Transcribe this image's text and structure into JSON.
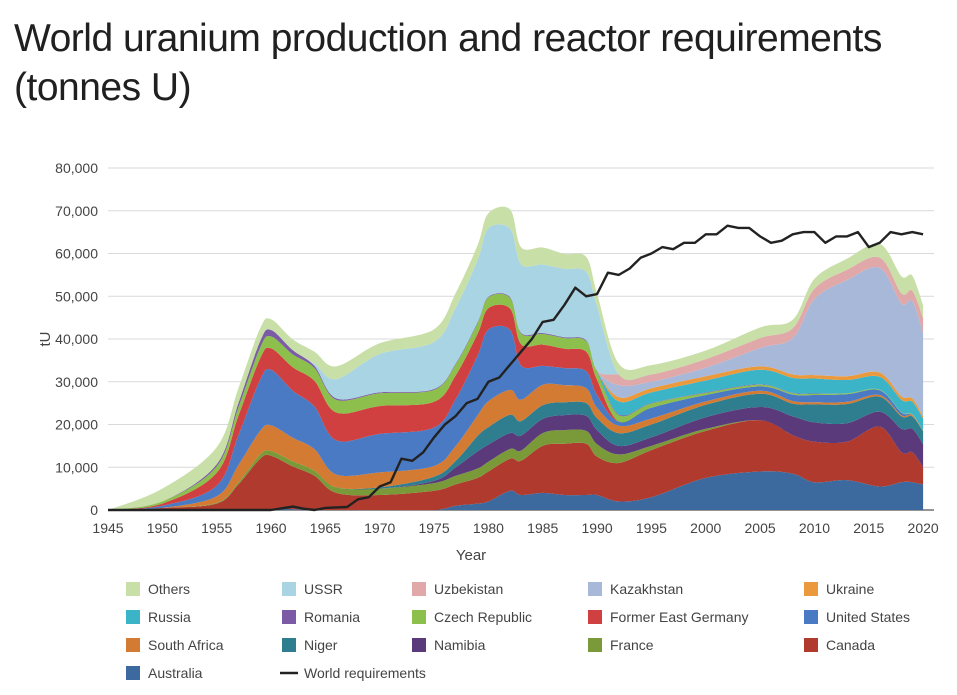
{
  "chart_data": {
    "type": "area",
    "title": "World uranium production and reactor requirements (tonnes U)",
    "xlabel": "Year",
    "ylabel": "tU",
    "xlim": [
      1945,
      2021
    ],
    "ylim": [
      0,
      80000
    ],
    "x_ticks": [
      "1945",
      "1950",
      "1955",
      "1960",
      "1965",
      "1970",
      "1975",
      "1980",
      "1985",
      "1990",
      "1995",
      "2000",
      "2005",
      "2010",
      "2015",
      "2020"
    ],
    "y_ticks": [
      "0",
      "10,000",
      "20,000",
      "30,000",
      "40,000",
      "50,000",
      "60,000",
      "70,000",
      "80,000"
    ],
    "grid": true,
    "legend_position": "bottom",
    "years": [
      1945,
      1950,
      1955,
      1957,
      1959,
      1960,
      1962,
      1964,
      1966,
      1970,
      1975,
      1977,
      1979,
      1980,
      1982,
      1983,
      1985,
      1987,
      1989,
      1990,
      1992,
      1995,
      2000,
      2005,
      2008,
      2010,
      2013,
      2016,
      2018,
      2019,
      2020
    ],
    "stack_order": [
      "Australia",
      "Canada",
      "France",
      "Namibia",
      "Niger",
      "South Africa",
      "United States",
      "Former East Germany",
      "Czech Republic",
      "Romania",
      "Russia",
      "Ukraine",
      "Kazakhstan",
      "Uzbekistan",
      "USSR",
      "Others"
    ],
    "series": [
      {
        "name": "Australia",
        "color": "#3c6a9e",
        "values": [
          0,
          0,
          0,
          0,
          0,
          200,
          200,
          0,
          0,
          0,
          0,
          1000,
          1500,
          2000,
          4500,
          3500,
          4000,
          3500,
          3500,
          3500,
          2000,
          3000,
          7500,
          9000,
          8500,
          6500,
          7000,
          5500,
          6500,
          6500,
          6000
        ]
      },
      {
        "name": "Canada",
        "color": "#b03a2e",
        "values": [
          0,
          500,
          1500,
          6000,
          12000,
          12500,
          10000,
          8000,
          4000,
          3500,
          4500,
          5000,
          6000,
          7000,
          7500,
          8000,
          11000,
          12000,
          12000,
          9000,
          9000,
          11000,
          11000,
          12000,
          9000,
          9500,
          9000,
          14000,
          7000,
          7000,
          4000
        ]
      },
      {
        "name": "France",
        "color": "#7a9a3a",
        "values": [
          0,
          0,
          200,
          500,
          1000,
          1100,
          1200,
          1200,
          1300,
          1500,
          1800,
          2000,
          2200,
          2300,
          2300,
          2400,
          3000,
          3200,
          3000,
          2900,
          2000,
          1000,
          500,
          0,
          0,
          0,
          0,
          0,
          0,
          0,
          0
        ]
      },
      {
        "name": "Namibia",
        "color": "#5a3a7a",
        "values": [
          0,
          0,
          0,
          0,
          0,
          0,
          0,
          0,
          0,
          0,
          500,
          2000,
          4000,
          4000,
          3700,
          3500,
          3300,
          3500,
          3500,
          3300,
          2000,
          2000,
          2700,
          3100,
          4400,
          4500,
          4300,
          3500,
          5500,
          5500,
          5400
        ]
      },
      {
        "name": "Niger",
        "color": "#2e7e8f",
        "values": [
          0,
          0,
          0,
          0,
          0,
          0,
          0,
          0,
          0,
          300,
          1000,
          1500,
          3600,
          4100,
          4300,
          3400,
          3200,
          3000,
          3000,
          2800,
          3000,
          3000,
          2900,
          3100,
          3000,
          4200,
          4500,
          3500,
          2900,
          2900,
          3000
        ]
      },
      {
        "name": "South Africa",
        "color": "#d37a33",
        "values": [
          0,
          0,
          1500,
          4000,
          5500,
          6000,
          5500,
          5000,
          3000,
          3500,
          2500,
          3500,
          4800,
          6000,
          5800,
          5000,
          4800,
          4000,
          3500,
          2400,
          1700,
          1400,
          800,
          700,
          600,
          500,
          500,
          400,
          300,
          300,
          200
        ]
      },
      {
        "name": "United States",
        "color": "#4b7ac4",
        "values": [
          0,
          500,
          2500,
          7000,
          12000,
          13000,
          11000,
          10000,
          8000,
          9000,
          9000,
          11000,
          14000,
          16800,
          14000,
          8000,
          4400,
          4000,
          4000,
          3000,
          1000,
          2500,
          1500,
          1000,
          1500,
          1700,
          1800,
          1100,
          600,
          100,
          0
        ]
      },
      {
        "name": "Former East Germany",
        "color": "#d14040",
        "values": [
          0,
          500,
          3000,
          4500,
          5000,
          5000,
          5500,
          6000,
          6500,
          6500,
          6000,
          5500,
          5100,
          5000,
          5000,
          5000,
          5000,
          4500,
          4500,
          3500,
          0,
          0,
          0,
          0,
          0,
          0,
          0,
          0,
          0,
          0,
          0
        ]
      },
      {
        "name": "Czech Republic",
        "color": "#8cbf4c",
        "values": [
          0,
          500,
          1500,
          2000,
          2500,
          2800,
          3000,
          3000,
          3000,
          3000,
          2800,
          2600,
          2500,
          2500,
          2500,
          2500,
          2500,
          2500,
          2500,
          2000,
          1500,
          1000,
          500,
          400,
          300,
          250,
          200,
          150,
          100,
          100,
          0
        ]
      },
      {
        "name": "Romania",
        "color": "#7b5aa6",
        "values": [
          0,
          0,
          500,
          1000,
          1500,
          1500,
          1000,
          500,
          300,
          200,
          200,
          200,
          200,
          200,
          200,
          200,
          200,
          200,
          200,
          200,
          200,
          100,
          100,
          100,
          100,
          100,
          0,
          0,
          0,
          0,
          0
        ]
      },
      {
        "name": "Russia",
        "color": "#3cb4c8",
        "values": [
          0,
          0,
          0,
          0,
          0,
          0,
          0,
          0,
          0,
          0,
          0,
          0,
          0,
          0,
          0,
          0,
          0,
          0,
          0,
          0,
          3000,
          2500,
          2800,
          3400,
          3500,
          3500,
          3100,
          3000,
          2900,
          2900,
          2800
        ]
      },
      {
        "name": "Ukraine",
        "color": "#ea9a3c",
        "values": [
          0,
          0,
          0,
          0,
          0,
          0,
          0,
          0,
          0,
          0,
          0,
          0,
          0,
          0,
          0,
          0,
          0,
          0,
          0,
          0,
          1000,
          1000,
          1000,
          800,
          800,
          800,
          900,
          1000,
          800,
          800,
          500
        ]
      },
      {
        "name": "Kazakhstan",
        "color": "#a8b8d8",
        "values": [
          0,
          0,
          0,
          0,
          0,
          0,
          0,
          0,
          0,
          0,
          0,
          0,
          0,
          0,
          0,
          0,
          0,
          0,
          0,
          0,
          2800,
          1500,
          2000,
          4300,
          8500,
          17800,
          22500,
          24500,
          21700,
          22800,
          19500
        ]
      },
      {
        "name": "Uzbekistan",
        "color": "#e0a8a8",
        "values": [
          0,
          0,
          0,
          0,
          0,
          0,
          0,
          0,
          0,
          0,
          0,
          0,
          0,
          0,
          0,
          0,
          0,
          0,
          0,
          0,
          2500,
          1700,
          2000,
          2300,
          2300,
          2400,
          2400,
          2400,
          2400,
          2400,
          3500
        ]
      },
      {
        "name": "USSR",
        "color": "#a9d4e3",
        "values": [
          0,
          0,
          0,
          0,
          0,
          0,
          0,
          500,
          4500,
          9000,
          11000,
          13000,
          14500,
          16000,
          16000,
          16000,
          16000,
          16000,
          16000,
          15000,
          0,
          0,
          0,
          0,
          0,
          0,
          0,
          0,
          0,
          0,
          0
        ]
      },
      {
        "name": "Others",
        "color": "#c8dfa8",
        "values": [
          0,
          3000,
          4000,
          3500,
          3000,
          2500,
          2500,
          2800,
          3000,
          2500,
          3000,
          3500,
          3500,
          3500,
          4500,
          4000,
          4000,
          3500,
          3500,
          3000,
          2500,
          2200,
          2000,
          2500,
          2000,
          2300,
          2600,
          3200,
          4000,
          3500,
          3000
        ]
      }
    ],
    "requirements": {
      "name": "World requirements",
      "color": "#222222",
      "x": [
        1945,
        1960,
        1962,
        1963,
        1964,
        1965,
        1966,
        1967,
        1968,
        1969,
        1970,
        1971,
        1972,
        1973,
        1974,
        1975,
        1976,
        1977,
        1978,
        1979,
        1980,
        1981,
        1982,
        1983,
        1984,
        1985,
        1986,
        1987,
        1988,
        1989,
        1990,
        1991,
        1992,
        1993,
        1994,
        1995,
        1996,
        1997,
        1998,
        1999,
        2000,
        2001,
        2002,
        2003,
        2004,
        2005,
        2006,
        2007,
        2008,
        2009,
        2010,
        2011,
        2012,
        2013,
        2014,
        2015,
        2016,
        2017,
        2018,
        2019,
        2020
      ],
      "values": [
        0,
        0,
        800,
        300,
        0,
        500,
        600,
        700,
        2500,
        3000,
        5500,
        6500,
        12000,
        11500,
        13500,
        17000,
        20000,
        22000,
        25000,
        26000,
        30000,
        31000,
        34000,
        37000,
        40000,
        44000,
        44500,
        48000,
        52000,
        50000,
        50500,
        55500,
        55000,
        56500,
        59000,
        60000,
        61500,
        61000,
        62500,
        62500,
        64500,
        64500,
        66500,
        66000,
        66000,
        64000,
        62500,
        63000,
        64500,
        65000,
        65000,
        62500,
        64000,
        64000,
        65000,
        61500,
        62500,
        65000,
        64500,
        65000,
        64500
      ]
    }
  }
}
